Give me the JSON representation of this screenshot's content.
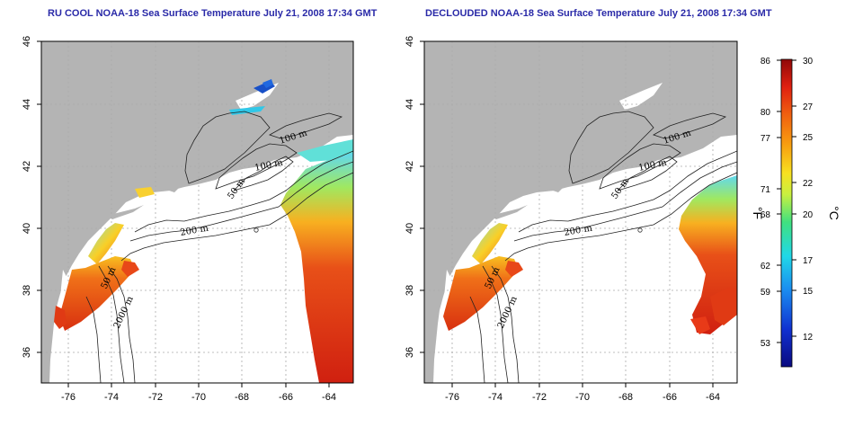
{
  "maps": [
    {
      "title": "RU COOL NOAA-18 Sea Surface Temperature July 21, 2008 17:34 GMT",
      "x_ticks": [
        "-76",
        "-74",
        "-72",
        "-70",
        "-68",
        "-66",
        "-64"
      ],
      "y_ticks": [
        "46",
        "44",
        "42",
        "40",
        "38",
        "36"
      ],
      "contour_labels": [
        "100 m",
        "100 m",
        "50 m",
        "200 m",
        "50 m",
        "2000 m"
      ]
    },
    {
      "title": "DECLOUDED NOAA-18 Sea Surface Temperature July 21, 2008 17:34 GMT",
      "x_ticks": [
        "-76",
        "-74",
        "-72",
        "-70",
        "-68",
        "-66",
        "-64"
      ],
      "y_ticks": [
        "46",
        "44",
        "42",
        "40",
        "38",
        "36"
      ],
      "contour_labels": [
        "100 m",
        "100 m",
        "50 m",
        "200 m",
        "50 m",
        "2000 m"
      ]
    }
  ],
  "colorbar": {
    "fahrenheit_ticks": [
      "86",
      "80",
      "77",
      "71",
      "68",
      "62",
      "59",
      "53"
    ],
    "celsius_ticks": [
      "30",
      "27",
      "25",
      "22",
      "20",
      "17",
      "15",
      "12"
    ],
    "fahrenheit_unit": "°F",
    "celsius_unit": "°C"
  },
  "colors": {
    "land": "#b4b4b4",
    "title": "#2a2aa8",
    "grid": "#aaaaaa"
  }
}
